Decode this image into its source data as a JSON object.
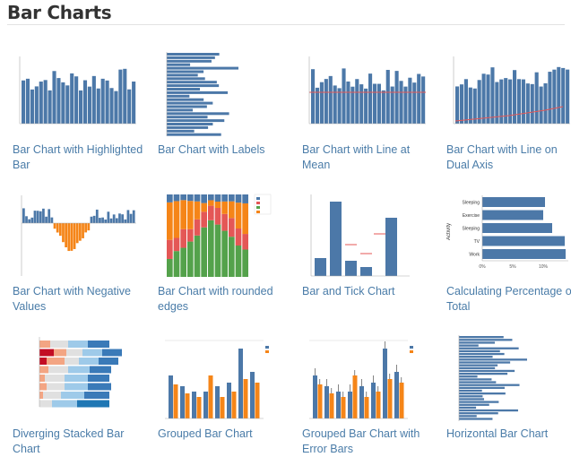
{
  "page": {
    "title": "Bar Charts",
    "link_color": "#4a7ca8",
    "bar_color": "#4c78a8",
    "accent_colors": [
      "#f58518",
      "#e45756",
      "#54a24b",
      "#9ecae9"
    ]
  },
  "gallery": [
    {
      "label": "Bar Chart with Highlighted Bar"
    },
    {
      "label": "Bar Chart with Labels"
    },
    {
      "label": "Bar Chart with Line at Mean"
    },
    {
      "label": "Bar Chart with Line on Dual Axis"
    },
    {
      "label": "Bar Chart with Negative Values"
    },
    {
      "label": "Bar Chart with rounded edges"
    },
    {
      "label": "Bar and Tick Chart"
    },
    {
      "label": "Calculating Percentage of Total"
    },
    {
      "label": "Diverging Stacked Bar Chart"
    },
    {
      "label": "Grouped Bar Chart"
    },
    {
      "label": "Grouped Bar Chart with Error Bars"
    },
    {
      "label": "Horizontal Bar Chart"
    }
  ],
  "percent_chart": {
    "categories": [
      "Sleeping",
      "Exercise",
      "Sleeping",
      "TV",
      "Work"
    ],
    "axis_title": "Activity",
    "ticks": [
      "0%",
      "5%",
      "10%"
    ]
  }
}
